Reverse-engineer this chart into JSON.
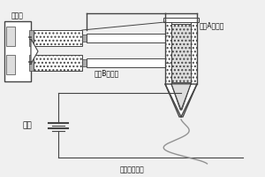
{
  "bg_color": "#f0f0f0",
  "line_color": "#444444",
  "dot_fill": "#cccccc",
  "text_color": "#111111",
  "labels": {
    "pump": "注射泵",
    "compA": "组分A纺丝液",
    "compB": "组分B纺丝液",
    "highvolt": "高压",
    "bottom": "静电纺丝原理"
  },
  "figsize": [
    3.0,
    2.0
  ],
  "dpi": 100
}
